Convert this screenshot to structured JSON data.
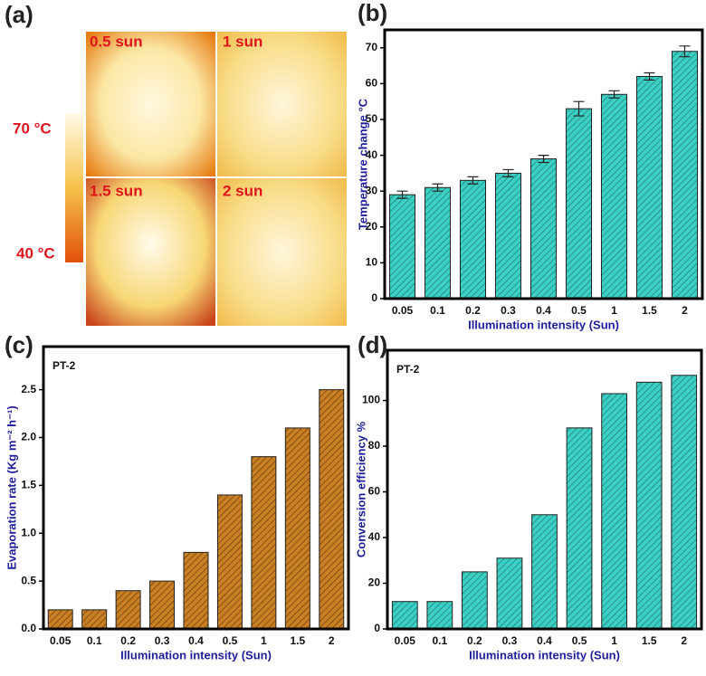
{
  "panel_a": {
    "label": "(a)",
    "images": [
      "0.5 sun",
      "1 sun",
      "1.5 sun",
      "2 sun"
    ],
    "colorbar": {
      "max": "70 °C",
      "min": "40 °C"
    }
  },
  "chart_data": [
    {
      "type": "bar",
      "label": "(b)",
      "x_label": "Illumination intensity (Sun)",
      "y_label": "Temperature change °C",
      "categories": [
        "0.05",
        "0.1",
        "0.2",
        "0.3",
        "0.4",
        "0.5",
        "1",
        "1.5",
        "2"
      ],
      "values": [
        29,
        31,
        33,
        35,
        39,
        53,
        57,
        62,
        69
      ],
      "errors": [
        1,
        1,
        1,
        1,
        1,
        2,
        1,
        1,
        1.5
      ],
      "color": "#3ccfc4",
      "ylim": [
        0,
        75
      ],
      "yticks": [
        0,
        10,
        20,
        30,
        40,
        50,
        60,
        70
      ]
    },
    {
      "type": "bar",
      "label": "(c)",
      "annotation": "PT-2",
      "x_label": "Illumination intensity (Sun)",
      "y_label": "Evaporation rate (Kg m⁻² h⁻¹)",
      "categories": [
        "0.05",
        "0.1",
        "0.2",
        "0.3",
        "0.4",
        "0.5",
        "1",
        "1.5",
        "2"
      ],
      "values": [
        0.2,
        0.2,
        0.4,
        0.5,
        0.8,
        1.4,
        1.8,
        2.1,
        2.5
      ],
      "color": "#c97f24",
      "ylim": [
        0,
        2.95
      ],
      "yticks": [
        {
          "value": 0,
          "label": "0.0"
        },
        0.5,
        {
          "value": 1,
          "label": "1.0"
        },
        1.5,
        {
          "value": 2,
          "label": "2.0"
        },
        2.5
      ]
    },
    {
      "type": "bar",
      "label": "(d)",
      "annotation": "PT-2",
      "x_label": "Illumination intensity (Sun)",
      "y_label": "Conversion efficiency %",
      "categories": [
        "0.05",
        "0.1",
        "0.2",
        "0.3",
        "0.4",
        "0.5",
        "1",
        "1.5",
        "2"
      ],
      "values": [
        12,
        12,
        25,
        31,
        50,
        88,
        103,
        108,
        111
      ],
      "color": "#3ccfc4",
      "ylim": [
        0,
        122
      ],
      "yticks": [
        0,
        20,
        40,
        60,
        80,
        100
      ]
    }
  ]
}
